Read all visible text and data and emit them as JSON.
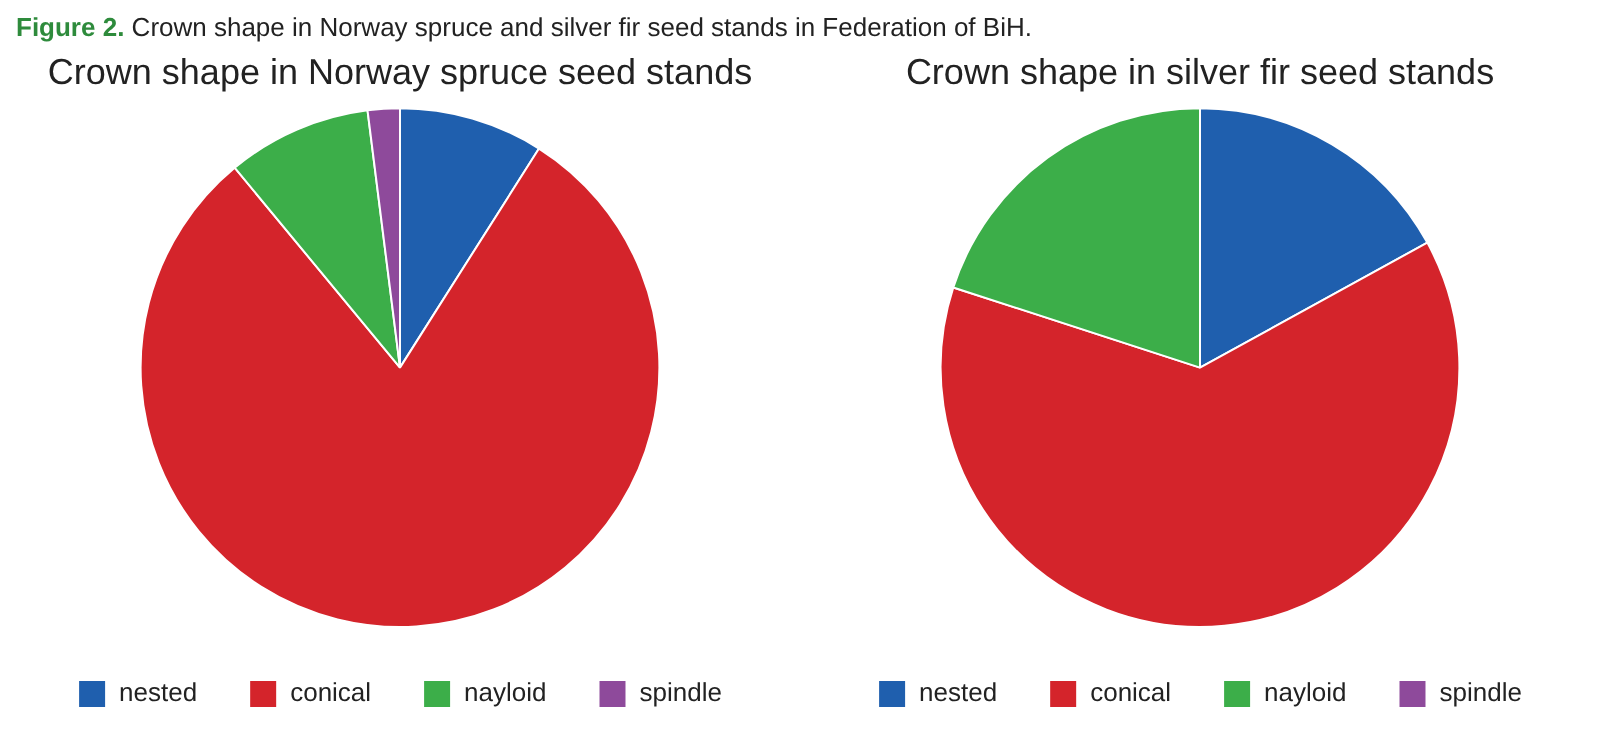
{
  "chart_data": [
    {
      "type": "pie",
      "title": "Crown shape in Norway spruce seed stands",
      "annotations": [
        "Figure 2. Crown shape in Norway spruce and silver fir seed stands in Federation of BiH."
      ],
      "categories": [
        "nested",
        "conical",
        "nayloid",
        "spindle"
      ],
      "values": [
        9,
        80,
        9,
        2
      ],
      "colors": [
        "#1f5fae",
        "#d4242b",
        "#3cae49",
        "#8e4a9b"
      ],
      "legend": "bottom"
    },
    {
      "type": "pie",
      "title": "Crown shape in silver fir seed stands",
      "categories": [
        "nested",
        "conical",
        "nayloid",
        "spindle"
      ],
      "values": [
        17,
        63,
        20,
        0
      ],
      "colors": [
        "#1f5fae",
        "#d4242b",
        "#3cae49",
        "#8e4a9b"
      ],
      "legend": "bottom"
    }
  ]
}
